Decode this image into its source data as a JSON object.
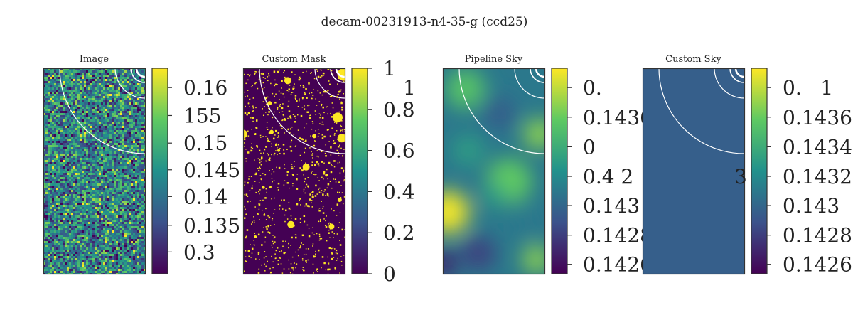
{
  "figure": {
    "suptitle": "decam-00231913-n4-35-g (ccd25)"
  },
  "colormap": [
    "#440154",
    "#3b528b",
    "#21918c",
    "#5ec962",
    "#fde725"
  ],
  "chart_data": [
    {
      "type": "heatmap",
      "title": "Image",
      "content": "noise",
      "colorbar_ticks": [
        {
          "label": "0.16",
          "frac": 0.906
        },
        {
          "label": "155",
          "frac": 0.77
        },
        {
          "label": "0.15",
          "frac": 0.636
        },
        {
          "label": "0.145",
          "frac": 0.506
        },
        {
          "label": "0.14",
          "frac": 0.376
        },
        {
          "label": "0.135",
          "frac": 0.236
        },
        {
          "label": "0.3",
          "frac": 0.106
        }
      ],
      "overlay_arcs": "white",
      "grid": false
    },
    {
      "type": "heatmap",
      "title": "Custom Mask",
      "content": "mask",
      "colorbar_range": [
        0,
        1
      ],
      "colorbar_ticks": [
        {
          "label": "1",
          "frac": 1.0
        },
        {
          "label": "0.8",
          "frac": 0.8
        },
        {
          "label": "0.6",
          "frac": 0.6
        },
        {
          "label": "0.4",
          "frac": 0.4
        },
        {
          "label": "0.2",
          "frac": 0.2
        },
        {
          "label": "0",
          "frac": 0.0
        }
      ],
      "extra_labels": [
        {
          "label": "1",
          "frac": 0.906
        }
      ],
      "overlay_arcs": "white",
      "grid": false
    },
    {
      "type": "heatmap",
      "title": "Pipeline Sky",
      "content": "smooth",
      "colorbar_ticks": [
        {
          "label": "0.",
          "frac": 0.906
        },
        {
          "label": "0.1436",
          "frac": 0.762
        },
        {
          "label": "0",
          "frac": 0.618
        },
        {
          "label": "0.4 2",
          "frac": 0.474
        },
        {
          "label": "0.143",
          "frac": 0.332
        },
        {
          "label": "0.1428",
          "frac": 0.188
        },
        {
          "label": "0.1426",
          "frac": 0.046
        }
      ],
      "overlay_arcs": "white",
      "grid": false
    },
    {
      "type": "heatmap",
      "title": "Custom Sky",
      "content": "uniform",
      "fill_level": 0.3,
      "colorbar_ticks": [
        {
          "label": "0.   1",
          "frac": 0.906
        },
        {
          "label": "0.1436",
          "frac": 0.762
        },
        {
          "label": "0.1434",
          "frac": 0.618
        },
        {
          "label": "0.1432",
          "frac": 0.474
        },
        {
          "label": "0.143",
          "frac": 0.332
        },
        {
          "label": "0.1428",
          "frac": 0.188
        },
        {
          "label": "0.1426",
          "frac": 0.046
        }
      ],
      "extra_labels": [
        {
          "label": "3",
          "frac": 0.474
        }
      ],
      "overlay_arcs": "white",
      "grid": false
    }
  ]
}
